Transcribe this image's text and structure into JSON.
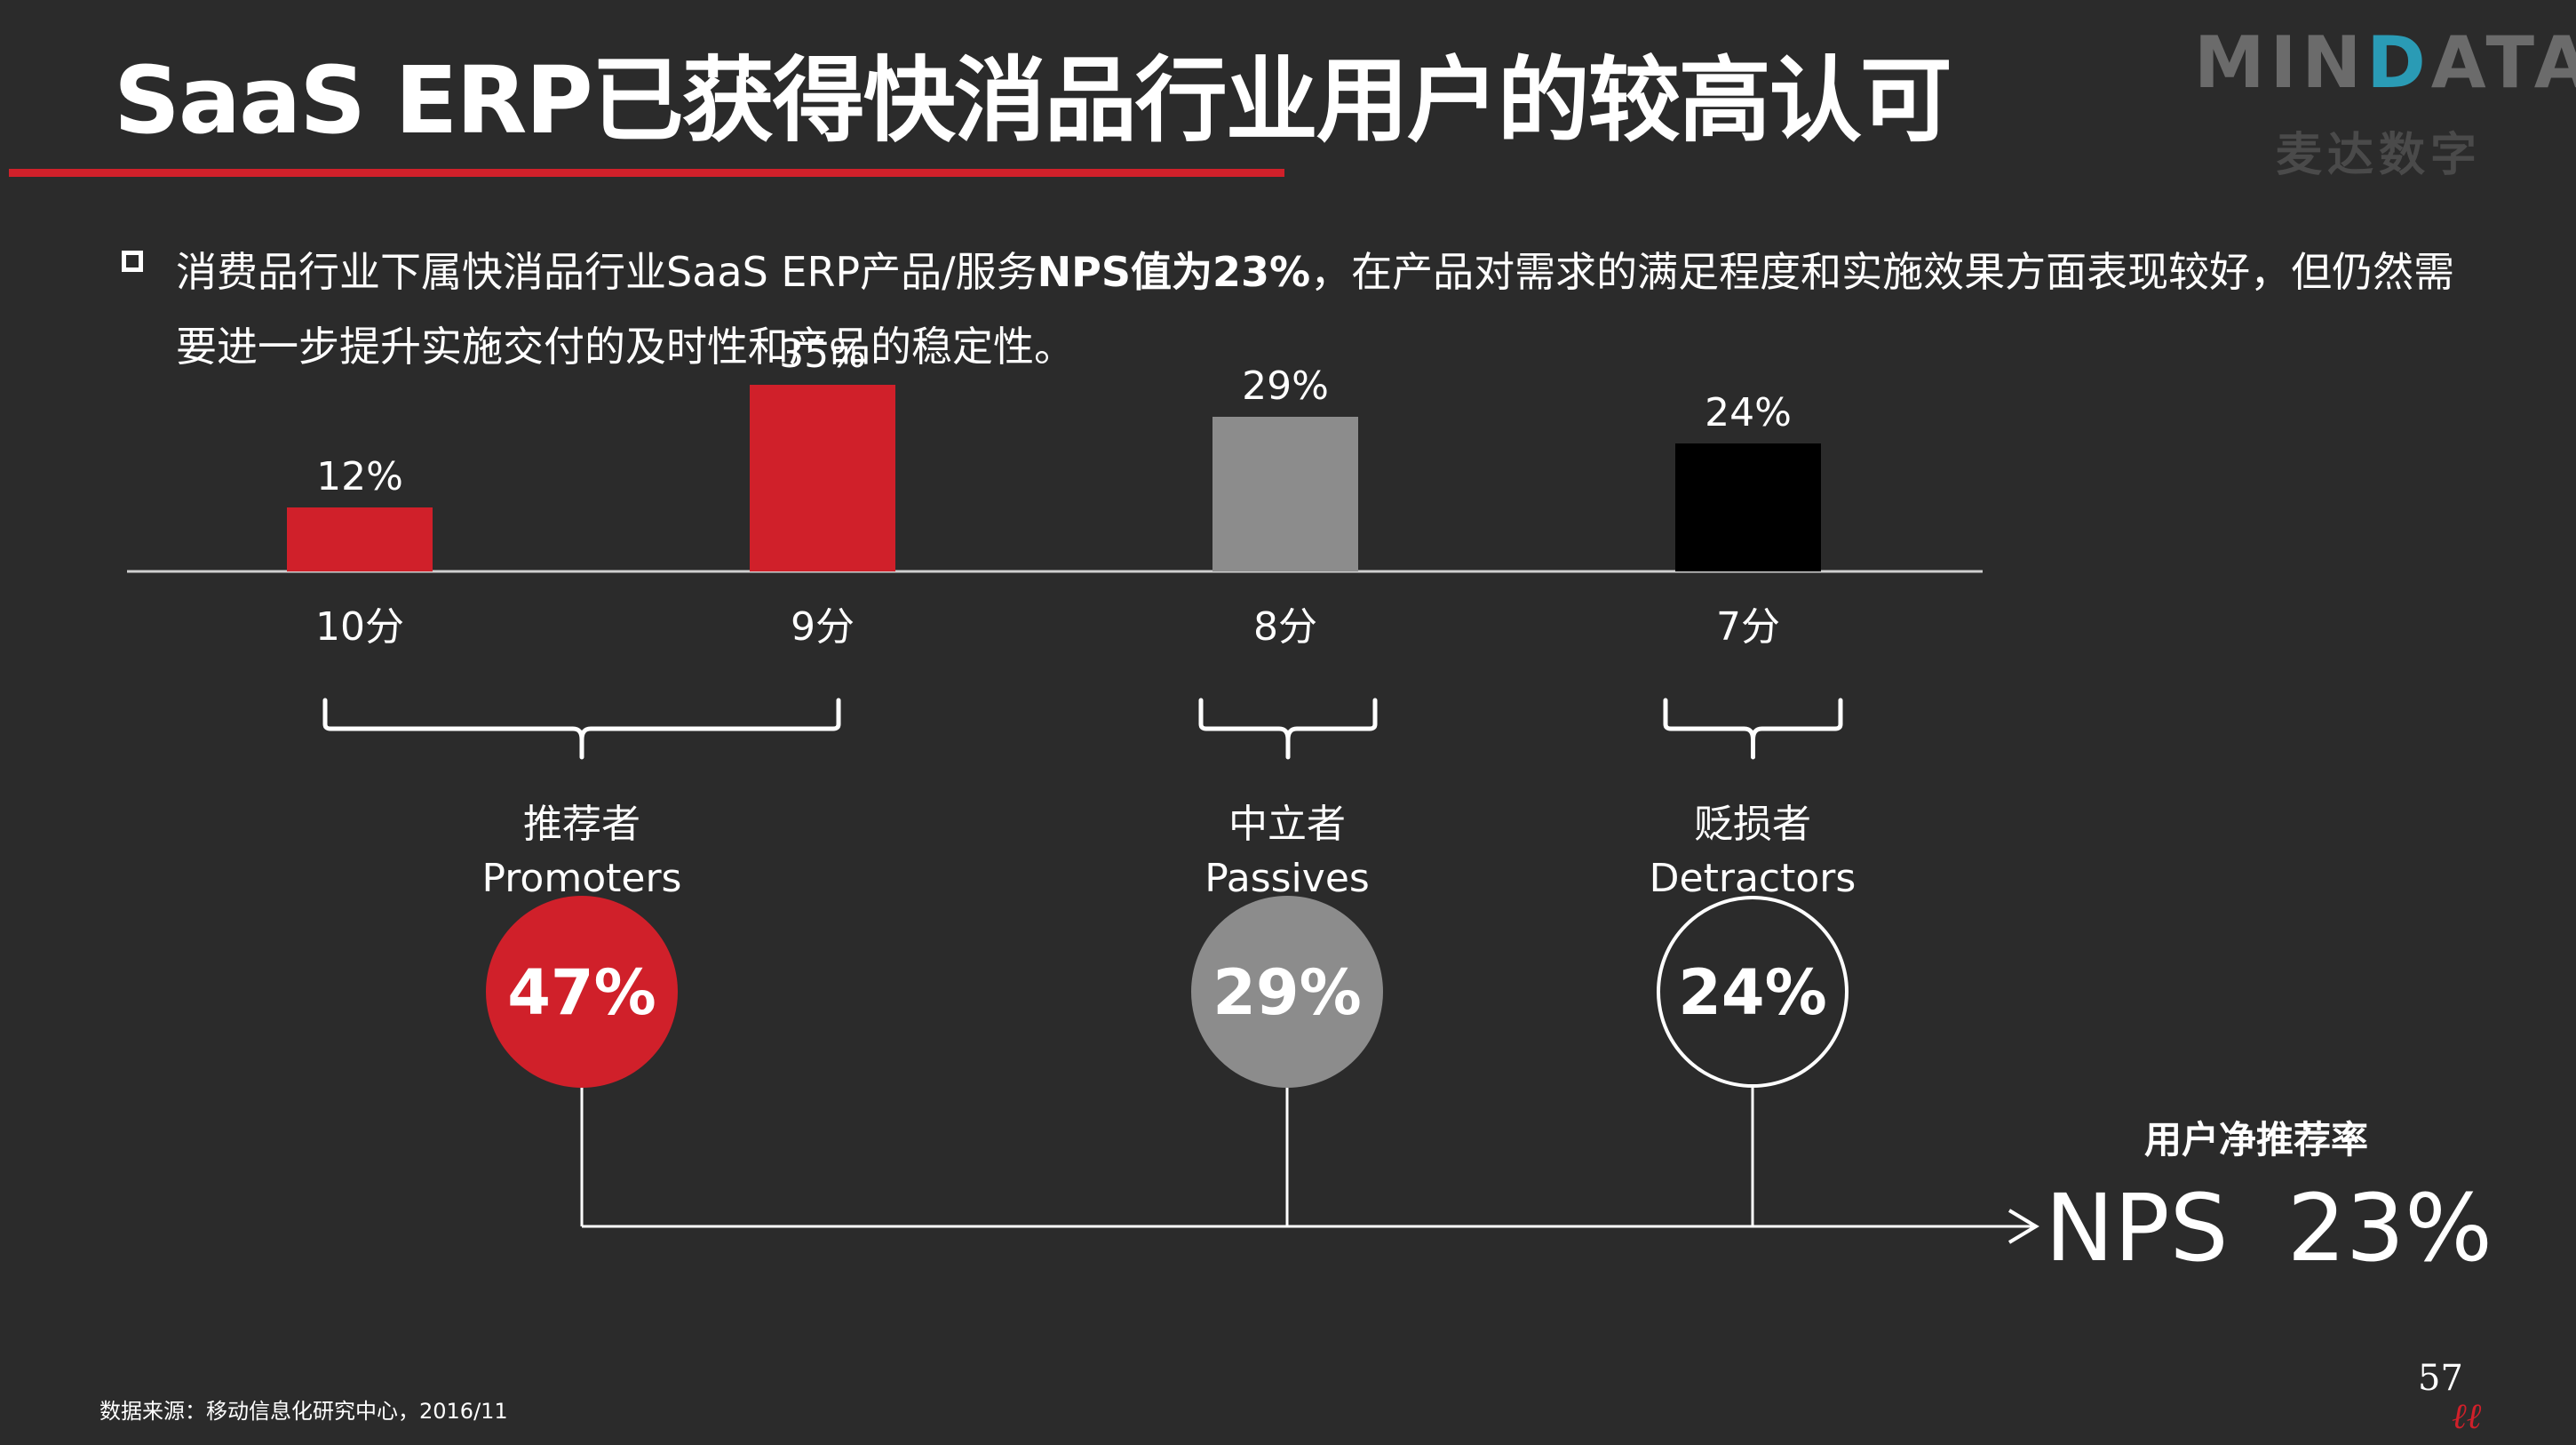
{
  "title": "SaaS ERP已获得快消品行业用户的较高认可",
  "logo": {
    "brand_pre": "MIN",
    "brand_d": "D",
    "brand_post": "ATA",
    "sub": "麦达数字"
  },
  "description": {
    "part1": "消费品行业下属快消品行业SaaS ERP产品/服务",
    "highlight": "NPS值为23%",
    "part2": "，在产品对需求的满足程度和实施效果方面表现较好，但仍然需要进一步提升实施交付的及时性和产品的稳定性。"
  },
  "chart_data": {
    "type": "bar",
    "categories": [
      "10分",
      "9分",
      "8分",
      "7分"
    ],
    "values": [
      12,
      35,
      29,
      24
    ],
    "value_labels": [
      "12%",
      "35%",
      "29%",
      "24%"
    ],
    "colors": [
      "#d0202a",
      "#d0202a",
      "#8c8c8c",
      "#000000"
    ],
    "title": "",
    "xlabel": "",
    "ylabel": ""
  },
  "groups": [
    {
      "name_cn": "推荐者",
      "name_en": "Promoters",
      "value": "47%",
      "fill": "#d0202a",
      "stroke": "#d0202a"
    },
    {
      "name_cn": "中立者",
      "name_en": "Passives",
      "value": "29%",
      "fill": "#8c8c8c",
      "stroke": "#8c8c8c"
    },
    {
      "name_cn": "贬损者",
      "name_en": "Detractors",
      "value": "24%",
      "fill": "#2b2b2b",
      "stroke": "#ffffff"
    }
  ],
  "nps": {
    "label": "用户净推荐率",
    "value": "NPS  23%"
  },
  "source": "数据来源：移动信息化研究中心，2016/11",
  "page_number": "57",
  "footer_brand": "iiii"
}
